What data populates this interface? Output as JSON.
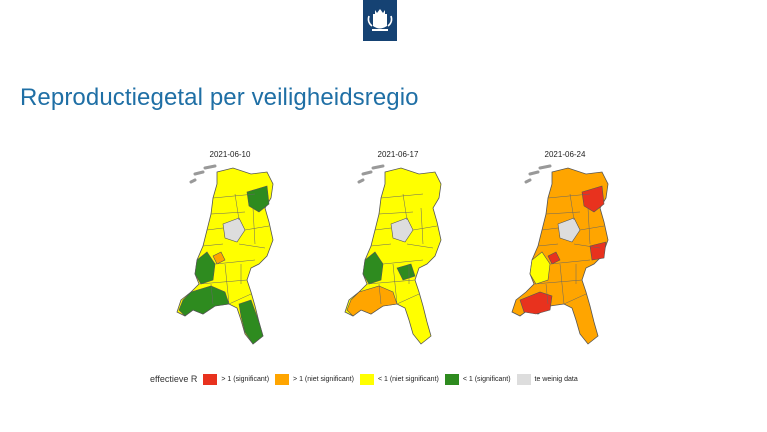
{
  "header": {
    "logo_icon": "government-coat-of-arms-icon",
    "logo_color": "#154273"
  },
  "title": "Reproductiegetal per veiligheidsregio",
  "maps": [
    {
      "date": "2021-06-10",
      "base_color": "#ffff00",
      "patches": [
        {
          "region": "north-east",
          "status": "lt1_sig"
        },
        {
          "region": "west-coast",
          "status": "lt1_sig"
        },
        {
          "region": "south-west",
          "status": "lt1_sig"
        },
        {
          "region": "south",
          "status": "lt1_sig"
        },
        {
          "region": "centre-small",
          "status": "gt1_nonsig"
        }
      ]
    },
    {
      "date": "2021-06-17",
      "base_color": "#ffff00",
      "patches": [
        {
          "region": "west-coast",
          "status": "lt1_sig"
        },
        {
          "region": "centre-east",
          "status": "lt1_sig"
        },
        {
          "region": "south-west",
          "status": "gt1_nonsig"
        }
      ]
    },
    {
      "date": "2021-06-24",
      "base_color": "#ffa500",
      "patches": [
        {
          "region": "north-east",
          "status": "gt1_sig"
        },
        {
          "region": "east",
          "status": "gt1_sig"
        },
        {
          "region": "centre-small",
          "status": "gt1_sig"
        },
        {
          "region": "south-west-big",
          "status": "gt1_sig"
        },
        {
          "region": "west-coast",
          "status": "lt1_nonsig"
        }
      ]
    }
  ],
  "legend": {
    "title": "effectieve R",
    "items": [
      {
        "key": "gt1_sig",
        "label": "> 1 (significant)",
        "color": "#e8321e"
      },
      {
        "key": "gt1_nonsig",
        "label": "> 1 (niet significant)",
        "color": "#ffa500"
      },
      {
        "key": "lt1_nonsig",
        "label": "< 1 (niet significant)",
        "color": "#ffff00"
      },
      {
        "key": "lt1_sig",
        "label": "< 1 (significant)",
        "color": "#2e8b1f"
      },
      {
        "key": "no_data",
        "label": "te weinig data",
        "color": "#dddddd"
      }
    ]
  }
}
